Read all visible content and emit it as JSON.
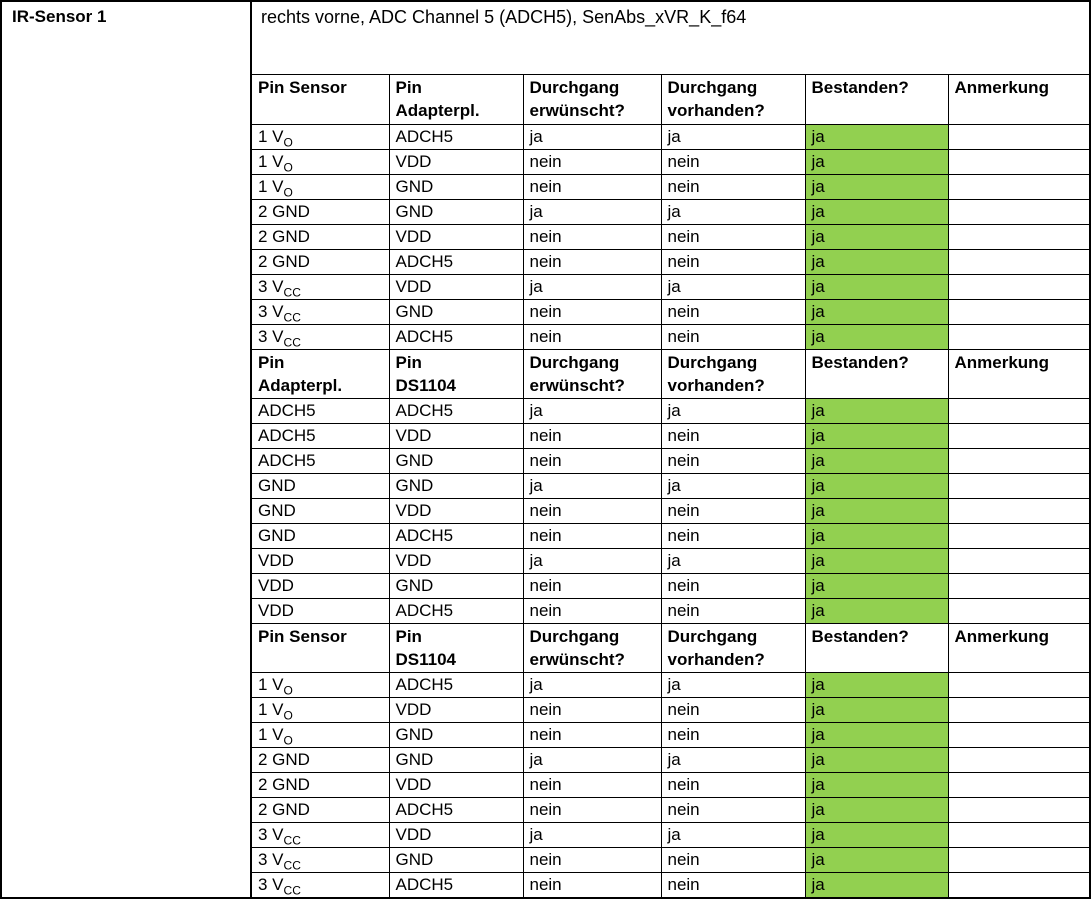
{
  "document": {
    "row_label": "IR-Sensor 1",
    "description": "rechts vorne, ADC Channel 5 (ADCH5), SenAbs_xVR_K_f64"
  },
  "colors": {
    "pass_green": "#92D050",
    "border": "#000000",
    "background": "#ffffff"
  },
  "table": {
    "sections": [
      {
        "columns": [
          "Pin Sensor",
          "Pin\nAdapterpl.",
          "Durchgang\nerwünscht?",
          "Durchgang\nvorhanden?",
          "Bestanden?",
          "Anmerkung"
        ],
        "rows": [
          [
            {
              "t": "1 V",
              "sub": "O"
            },
            {
              "t": "ADCH5"
            },
            {
              "t": "ja"
            },
            {
              "t": "ja"
            },
            {
              "t": "ja",
              "hl": true
            },
            {
              "t": ""
            }
          ],
          [
            {
              "t": "1 V",
              "sub": "O"
            },
            {
              "t": "VDD"
            },
            {
              "t": "nein"
            },
            {
              "t": "nein"
            },
            {
              "t": "ja",
              "hl": true
            },
            {
              "t": ""
            }
          ],
          [
            {
              "t": "1 V",
              "sub": "O"
            },
            {
              "t": "GND"
            },
            {
              "t": "nein"
            },
            {
              "t": "nein"
            },
            {
              "t": "ja",
              "hl": true
            },
            {
              "t": ""
            }
          ],
          [
            {
              "t": "2 GND"
            },
            {
              "t": "GND"
            },
            {
              "t": "ja"
            },
            {
              "t": "ja"
            },
            {
              "t": "ja",
              "hl": true
            },
            {
              "t": ""
            }
          ],
          [
            {
              "t": "2 GND"
            },
            {
              "t": "VDD"
            },
            {
              "t": "nein"
            },
            {
              "t": "nein"
            },
            {
              "t": "ja",
              "hl": true
            },
            {
              "t": ""
            }
          ],
          [
            {
              "t": "2 GND"
            },
            {
              "t": "ADCH5"
            },
            {
              "t": "nein"
            },
            {
              "t": "nein"
            },
            {
              "t": "ja",
              "hl": true
            },
            {
              "t": ""
            }
          ],
          [
            {
              "t": "3 V",
              "sub": "CC"
            },
            {
              "t": "VDD"
            },
            {
              "t": "ja"
            },
            {
              "t": "ja"
            },
            {
              "t": "ja",
              "hl": true
            },
            {
              "t": ""
            }
          ],
          [
            {
              "t": "3 V",
              "sub": "CC"
            },
            {
              "t": "GND"
            },
            {
              "t": "nein"
            },
            {
              "t": "nein"
            },
            {
              "t": "ja",
              "hl": true
            },
            {
              "t": ""
            }
          ],
          [
            {
              "t": "3 V",
              "sub": "CC"
            },
            {
              "t": "ADCH5"
            },
            {
              "t": "nein"
            },
            {
              "t": "nein"
            },
            {
              "t": "ja",
              "hl": true
            },
            {
              "t": ""
            }
          ]
        ]
      },
      {
        "columns": [
          "Pin\nAdapterpl.",
          "Pin\nDS1104",
          "Durchgang\nerwünscht?",
          "Durchgang\nvorhanden?",
          "Bestanden?",
          "Anmerkung"
        ],
        "rows": [
          [
            {
              "t": "ADCH5"
            },
            {
              "t": "ADCH5"
            },
            {
              "t": "ja"
            },
            {
              "t": "ja"
            },
            {
              "t": "ja",
              "hl": true
            },
            {
              "t": ""
            }
          ],
          [
            {
              "t": "ADCH5"
            },
            {
              "t": "VDD"
            },
            {
              "t": "nein"
            },
            {
              "t": "nein"
            },
            {
              "t": "ja",
              "hl": true
            },
            {
              "t": ""
            }
          ],
          [
            {
              "t": "ADCH5"
            },
            {
              "t": "GND"
            },
            {
              "t": "nein"
            },
            {
              "t": "nein"
            },
            {
              "t": "ja",
              "hl": true
            },
            {
              "t": ""
            }
          ],
          [
            {
              "t": "GND"
            },
            {
              "t": "GND"
            },
            {
              "t": "ja"
            },
            {
              "t": "ja"
            },
            {
              "t": "ja",
              "hl": true
            },
            {
              "t": ""
            }
          ],
          [
            {
              "t": "GND"
            },
            {
              "t": "VDD"
            },
            {
              "t": "nein"
            },
            {
              "t": "nein"
            },
            {
              "t": "ja",
              "hl": true
            },
            {
              "t": ""
            }
          ],
          [
            {
              "t": "GND"
            },
            {
              "t": "ADCH5"
            },
            {
              "t": "nein"
            },
            {
              "t": "nein"
            },
            {
              "t": "ja",
              "hl": true
            },
            {
              "t": ""
            }
          ],
          [
            {
              "t": "VDD"
            },
            {
              "t": "VDD"
            },
            {
              "t": "ja"
            },
            {
              "t": "ja"
            },
            {
              "t": "ja",
              "hl": true
            },
            {
              "t": ""
            }
          ],
          [
            {
              "t": "VDD"
            },
            {
              "t": "GND"
            },
            {
              "t": "nein"
            },
            {
              "t": "nein"
            },
            {
              "t": "ja",
              "hl": true
            },
            {
              "t": ""
            }
          ],
          [
            {
              "t": "VDD"
            },
            {
              "t": "ADCH5"
            },
            {
              "t": "nein"
            },
            {
              "t": "nein"
            },
            {
              "t": "ja",
              "hl": true
            },
            {
              "t": ""
            }
          ]
        ]
      },
      {
        "columns": [
          "Pin Sensor",
          "Pin\nDS1104",
          "Durchgang\nerwünscht?",
          "Durchgang\nvorhanden?",
          "Bestanden?",
          "Anmerkung"
        ],
        "rows": [
          [
            {
              "t": "1 V",
              "sub": "O"
            },
            {
              "t": "ADCH5"
            },
            {
              "t": "ja"
            },
            {
              "t": "ja"
            },
            {
              "t": "ja",
              "hl": true
            },
            {
              "t": ""
            }
          ],
          [
            {
              "t": "1 V",
              "sub": "O"
            },
            {
              "t": "VDD"
            },
            {
              "t": "nein"
            },
            {
              "t": "nein"
            },
            {
              "t": "ja",
              "hl": true
            },
            {
              "t": ""
            }
          ],
          [
            {
              "t": "1 V",
              "sub": "O"
            },
            {
              "t": "GND"
            },
            {
              "t": "nein"
            },
            {
              "t": "nein"
            },
            {
              "t": "ja",
              "hl": true
            },
            {
              "t": ""
            }
          ],
          [
            {
              "t": "2 GND"
            },
            {
              "t": "GND"
            },
            {
              "t": "ja"
            },
            {
              "t": "ja"
            },
            {
              "t": "ja",
              "hl": true
            },
            {
              "t": ""
            }
          ],
          [
            {
              "t": "2 GND"
            },
            {
              "t": "VDD"
            },
            {
              "t": "nein"
            },
            {
              "t": "nein"
            },
            {
              "t": "ja",
              "hl": true
            },
            {
              "t": ""
            }
          ],
          [
            {
              "t": "2 GND"
            },
            {
              "t": "ADCH5"
            },
            {
              "t": "nein"
            },
            {
              "t": "nein"
            },
            {
              "t": "ja",
              "hl": true
            },
            {
              "t": ""
            }
          ],
          [
            {
              "t": "3 V",
              "sub": "CC"
            },
            {
              "t": "VDD"
            },
            {
              "t": "ja"
            },
            {
              "t": "ja"
            },
            {
              "t": "ja",
              "hl": true
            },
            {
              "t": ""
            }
          ],
          [
            {
              "t": "3 V",
              "sub": "CC"
            },
            {
              "t": "GND"
            },
            {
              "t": "nein"
            },
            {
              "t": "nein"
            },
            {
              "t": "ja",
              "hl": true
            },
            {
              "t": ""
            }
          ],
          [
            {
              "t": "3 V",
              "sub": "CC"
            },
            {
              "t": "ADCH5"
            },
            {
              "t": "nein"
            },
            {
              "t": "nein"
            },
            {
              "t": "ja",
              "hl": true
            },
            {
              "t": ""
            }
          ]
        ]
      }
    ]
  }
}
